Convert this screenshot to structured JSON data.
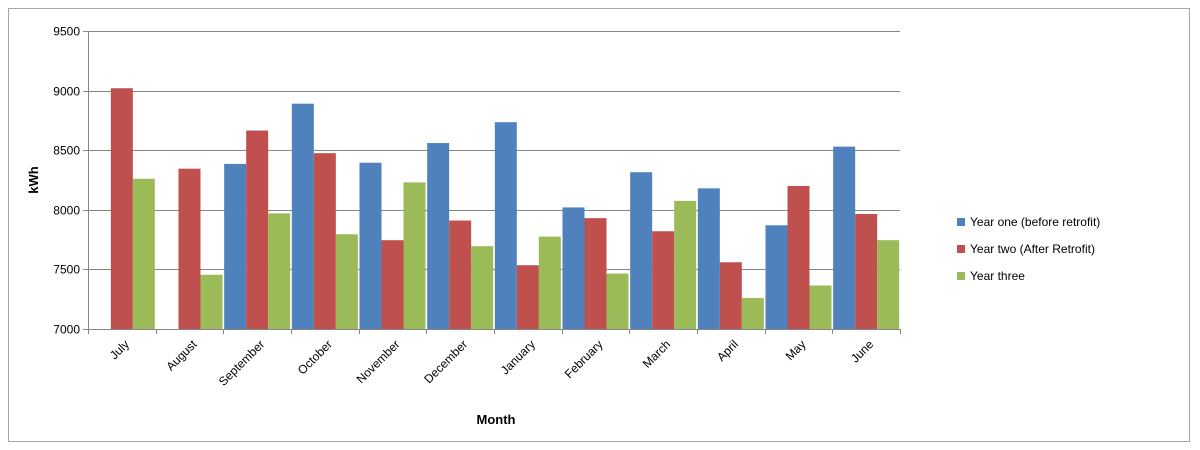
{
  "chart_data": {
    "type": "bar",
    "title": "",
    "xlabel": "Month",
    "ylabel": "kWh",
    "ylim": [
      7000,
      9500
    ],
    "yticks": [
      7000,
      7500,
      8000,
      8500,
      9000,
      9500
    ],
    "grid": true,
    "legend_position": "right",
    "categories": [
      "July",
      "August",
      "September",
      "October",
      "November",
      "December",
      "January",
      "February",
      "March",
      "April",
      "May",
      "June"
    ],
    "series": [
      {
        "name": "Year one (before retrofit)",
        "color": "#4f81bd",
        "values": [
          null,
          null,
          8385,
          8890,
          8395,
          8560,
          8735,
          8020,
          8315,
          8180,
          7870,
          8530
        ]
      },
      {
        "name": "Year two (After Retrofit)",
        "color": "#c0504d",
        "values": [
          9020,
          8345,
          8665,
          8475,
          7745,
          7910,
          7535,
          7930,
          7820,
          7560,
          8200,
          7965
        ]
      },
      {
        "name": "Year three",
        "color": "#9bbb59",
        "values": [
          8260,
          7455,
          7970,
          7795,
          8230,
          7695,
          7775,
          7465,
          8075,
          7260,
          7365,
          7745
        ]
      }
    ]
  }
}
